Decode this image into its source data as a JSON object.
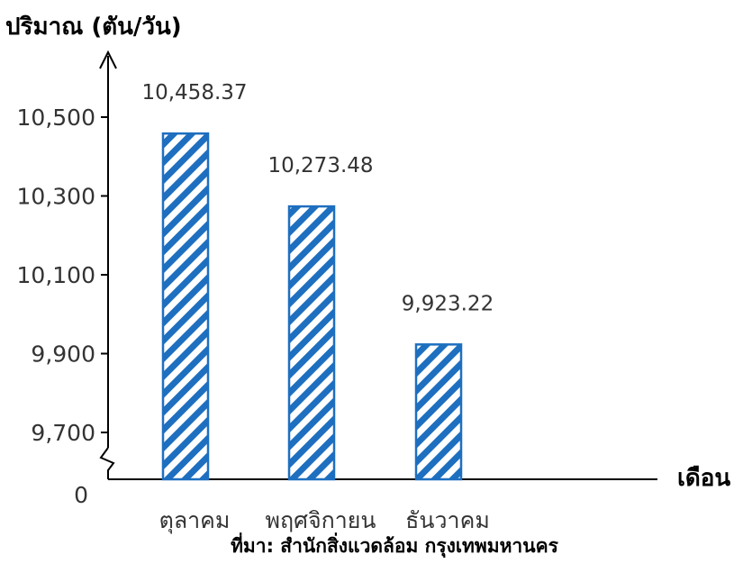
{
  "chart_data": {
    "type": "bar",
    "ylabel": "ปริมาณ (ตัน/วัน)",
    "xlabel": "เดือน",
    "categories": [
      "ตุลาคม",
      "พฤศจิกายน",
      "ธันวาคม"
    ],
    "values": [
      10458.37,
      10273.48,
      9923.22
    ],
    "value_labels": [
      "10,458.37",
      "10,273.48",
      "9,923.22"
    ],
    "yticks": [
      9700,
      9900,
      10100,
      10300,
      10500
    ],
    "ytick_labels": [
      "9,700",
      "9,900",
      "10,100",
      "10,300",
      "10,500"
    ],
    "zero_label": "0",
    "axis_break": true,
    "bar_pattern": "diagonal-hatch",
    "bar_color": "#1e6fbf",
    "source": "ที่มา: สำนักสิ่งแวดล้อม กรุงเทพมหานคร"
  }
}
